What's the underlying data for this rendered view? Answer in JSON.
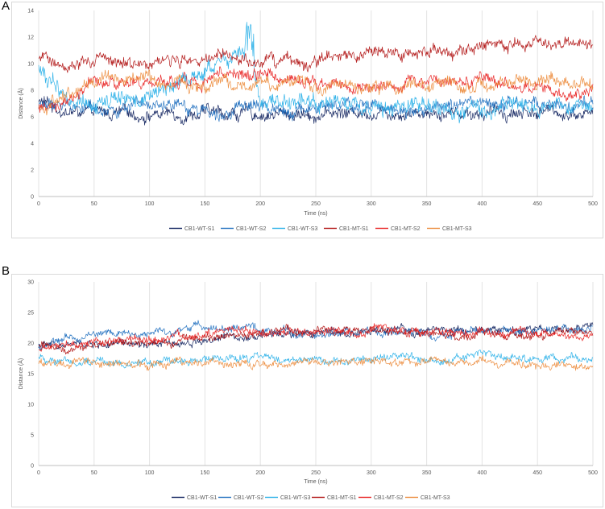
{
  "panels": [
    {
      "letter": "A"
    },
    {
      "letter": "B"
    }
  ],
  "chart_data": [
    {
      "type": "line",
      "panel": "A",
      "title": "",
      "xlabel": "Time (ns)",
      "ylabel": "Distance (Å)",
      "xlim": [
        0,
        500
      ],
      "ylim": [
        0,
        14
      ],
      "xticks": [
        0,
        50,
        100,
        150,
        200,
        250,
        300,
        350,
        400,
        450,
        500
      ],
      "yticks": [
        0,
        2,
        4,
        6,
        8,
        10,
        12,
        14
      ],
      "grid": "vertical",
      "legend": "bottom",
      "series": [
        {
          "name": "CB1-WT-S1",
          "color": "#0d1f5c",
          "x": [
            0,
            25,
            50,
            100,
            150,
            200,
            250,
            300,
            350,
            400,
            450,
            500
          ],
          "y": [
            7.2,
            6.4,
            6.2,
            6.2,
            6.3,
            6.2,
            6.2,
            6.4,
            6.4,
            6.3,
            6.4,
            6.3
          ]
        },
        {
          "name": "CB1-WT-S2",
          "color": "#1f6fbf",
          "x": [
            0,
            25,
            50,
            100,
            150,
            200,
            250,
            300,
            350,
            400,
            450,
            500
          ],
          "y": [
            6.8,
            6.9,
            6.7,
            6.6,
            6.6,
            6.7,
            6.6,
            6.8,
            6.7,
            6.8,
            6.8,
            6.7
          ]
        },
        {
          "name": "CB1-WT-S3",
          "color": "#29b0e8",
          "x": [
            0,
            25,
            50,
            100,
            150,
            175,
            190,
            200,
            250,
            300,
            350,
            400,
            450,
            500
          ],
          "y": [
            9.5,
            7.5,
            7.2,
            7.4,
            9.5,
            10.5,
            11,
            7.2,
            7.0,
            6.8,
            6.7,
            6.6,
            6.6,
            6.6
          ]
        },
        {
          "name": "CB1-MT-S1",
          "color": "#b01010",
          "x": [
            0,
            25,
            50,
            100,
            150,
            200,
            250,
            300,
            350,
            400,
            450,
            500
          ],
          "y": [
            10.2,
            10.1,
            10.1,
            10.2,
            10.3,
            10.1,
            10.2,
            10.6,
            10.8,
            11.2,
            11.4,
            11.5
          ]
        },
        {
          "name": "CB1-MT-S2",
          "color": "#e82020",
          "x": [
            0,
            25,
            50,
            100,
            150,
            200,
            250,
            300,
            350,
            400,
            450,
            500
          ],
          "y": [
            6.5,
            7.0,
            8.5,
            8.4,
            8.8,
            9.3,
            8.6,
            8.3,
            8.5,
            8.8,
            8.0,
            8.0
          ]
        },
        {
          "name": "CB1-MT-S3",
          "color": "#ec8a3a",
          "x": [
            0,
            25,
            50,
            100,
            150,
            200,
            250,
            300,
            350,
            400,
            450,
            500
          ],
          "y": [
            6.8,
            7.4,
            8.6,
            8.8,
            8.5,
            8.4,
            8.2,
            8.0,
            8.4,
            8.5,
            8.5,
            8.7
          ]
        }
      ]
    },
    {
      "type": "line",
      "panel": "B",
      "title": "",
      "xlabel": "Time (ns)",
      "ylabel": "Distance (Å)",
      "xlim": [
        0,
        500
      ],
      "ylim": [
        0,
        30
      ],
      "xticks": [
        0,
        50,
        100,
        150,
        200,
        250,
        300,
        350,
        400,
        450,
        500
      ],
      "yticks": [
        0,
        5,
        10,
        15,
        20,
        25,
        30
      ],
      "grid": "vertical",
      "legend": "bottom",
      "series": [
        {
          "name": "CB1-WT-S1",
          "color": "#0d1f5c",
          "x": [
            0,
            50,
            100,
            150,
            200,
            250,
            300,
            350,
            400,
            450,
            500
          ],
          "y": [
            19.5,
            19.8,
            19.5,
            20.5,
            21.5,
            21.5,
            21.8,
            22,
            22,
            22.5,
            22.5
          ]
        },
        {
          "name": "CB1-WT-S2",
          "color": "#1f6fbf",
          "x": [
            0,
            50,
            100,
            150,
            200,
            250,
            300,
            350,
            400,
            450,
            500
          ],
          "y": [
            19.5,
            21.5,
            21.5,
            22.8,
            22,
            21.5,
            21.8,
            21.5,
            21.8,
            22,
            22
          ]
        },
        {
          "name": "CB1-WT-S3",
          "color": "#29b0e8",
          "x": [
            0,
            50,
            100,
            150,
            200,
            250,
            300,
            350,
            400,
            450,
            500
          ],
          "y": [
            17.5,
            17,
            16.8,
            17.2,
            17.5,
            17.2,
            17.5,
            17.5,
            18,
            17.5,
            17.2
          ]
        },
        {
          "name": "CB1-MT-S1",
          "color": "#b01010",
          "x": [
            0,
            50,
            100,
            150,
            200,
            250,
            300,
            350,
            400,
            450,
            500
          ],
          "y": [
            19.5,
            19.5,
            20,
            20.5,
            21.8,
            22,
            22,
            21.5,
            21.5,
            21.5,
            21.5
          ]
        },
        {
          "name": "CB1-MT-S2",
          "color": "#e82020",
          "x": [
            0,
            50,
            100,
            150,
            200,
            250,
            300,
            350,
            400,
            450,
            500
          ],
          "y": [
            19,
            19.8,
            20.5,
            21.5,
            22,
            22,
            22,
            21.8,
            21.5,
            21.5,
            21
          ]
        },
        {
          "name": "CB1-MT-S3",
          "color": "#ec8a3a",
          "x": [
            0,
            50,
            100,
            150,
            200,
            250,
            300,
            350,
            400,
            450,
            500
          ],
          "y": [
            16.8,
            16.5,
            16.5,
            16.8,
            16.5,
            16.8,
            17,
            16.8,
            16.8,
            16.5,
            16.5
          ]
        }
      ]
    }
  ]
}
